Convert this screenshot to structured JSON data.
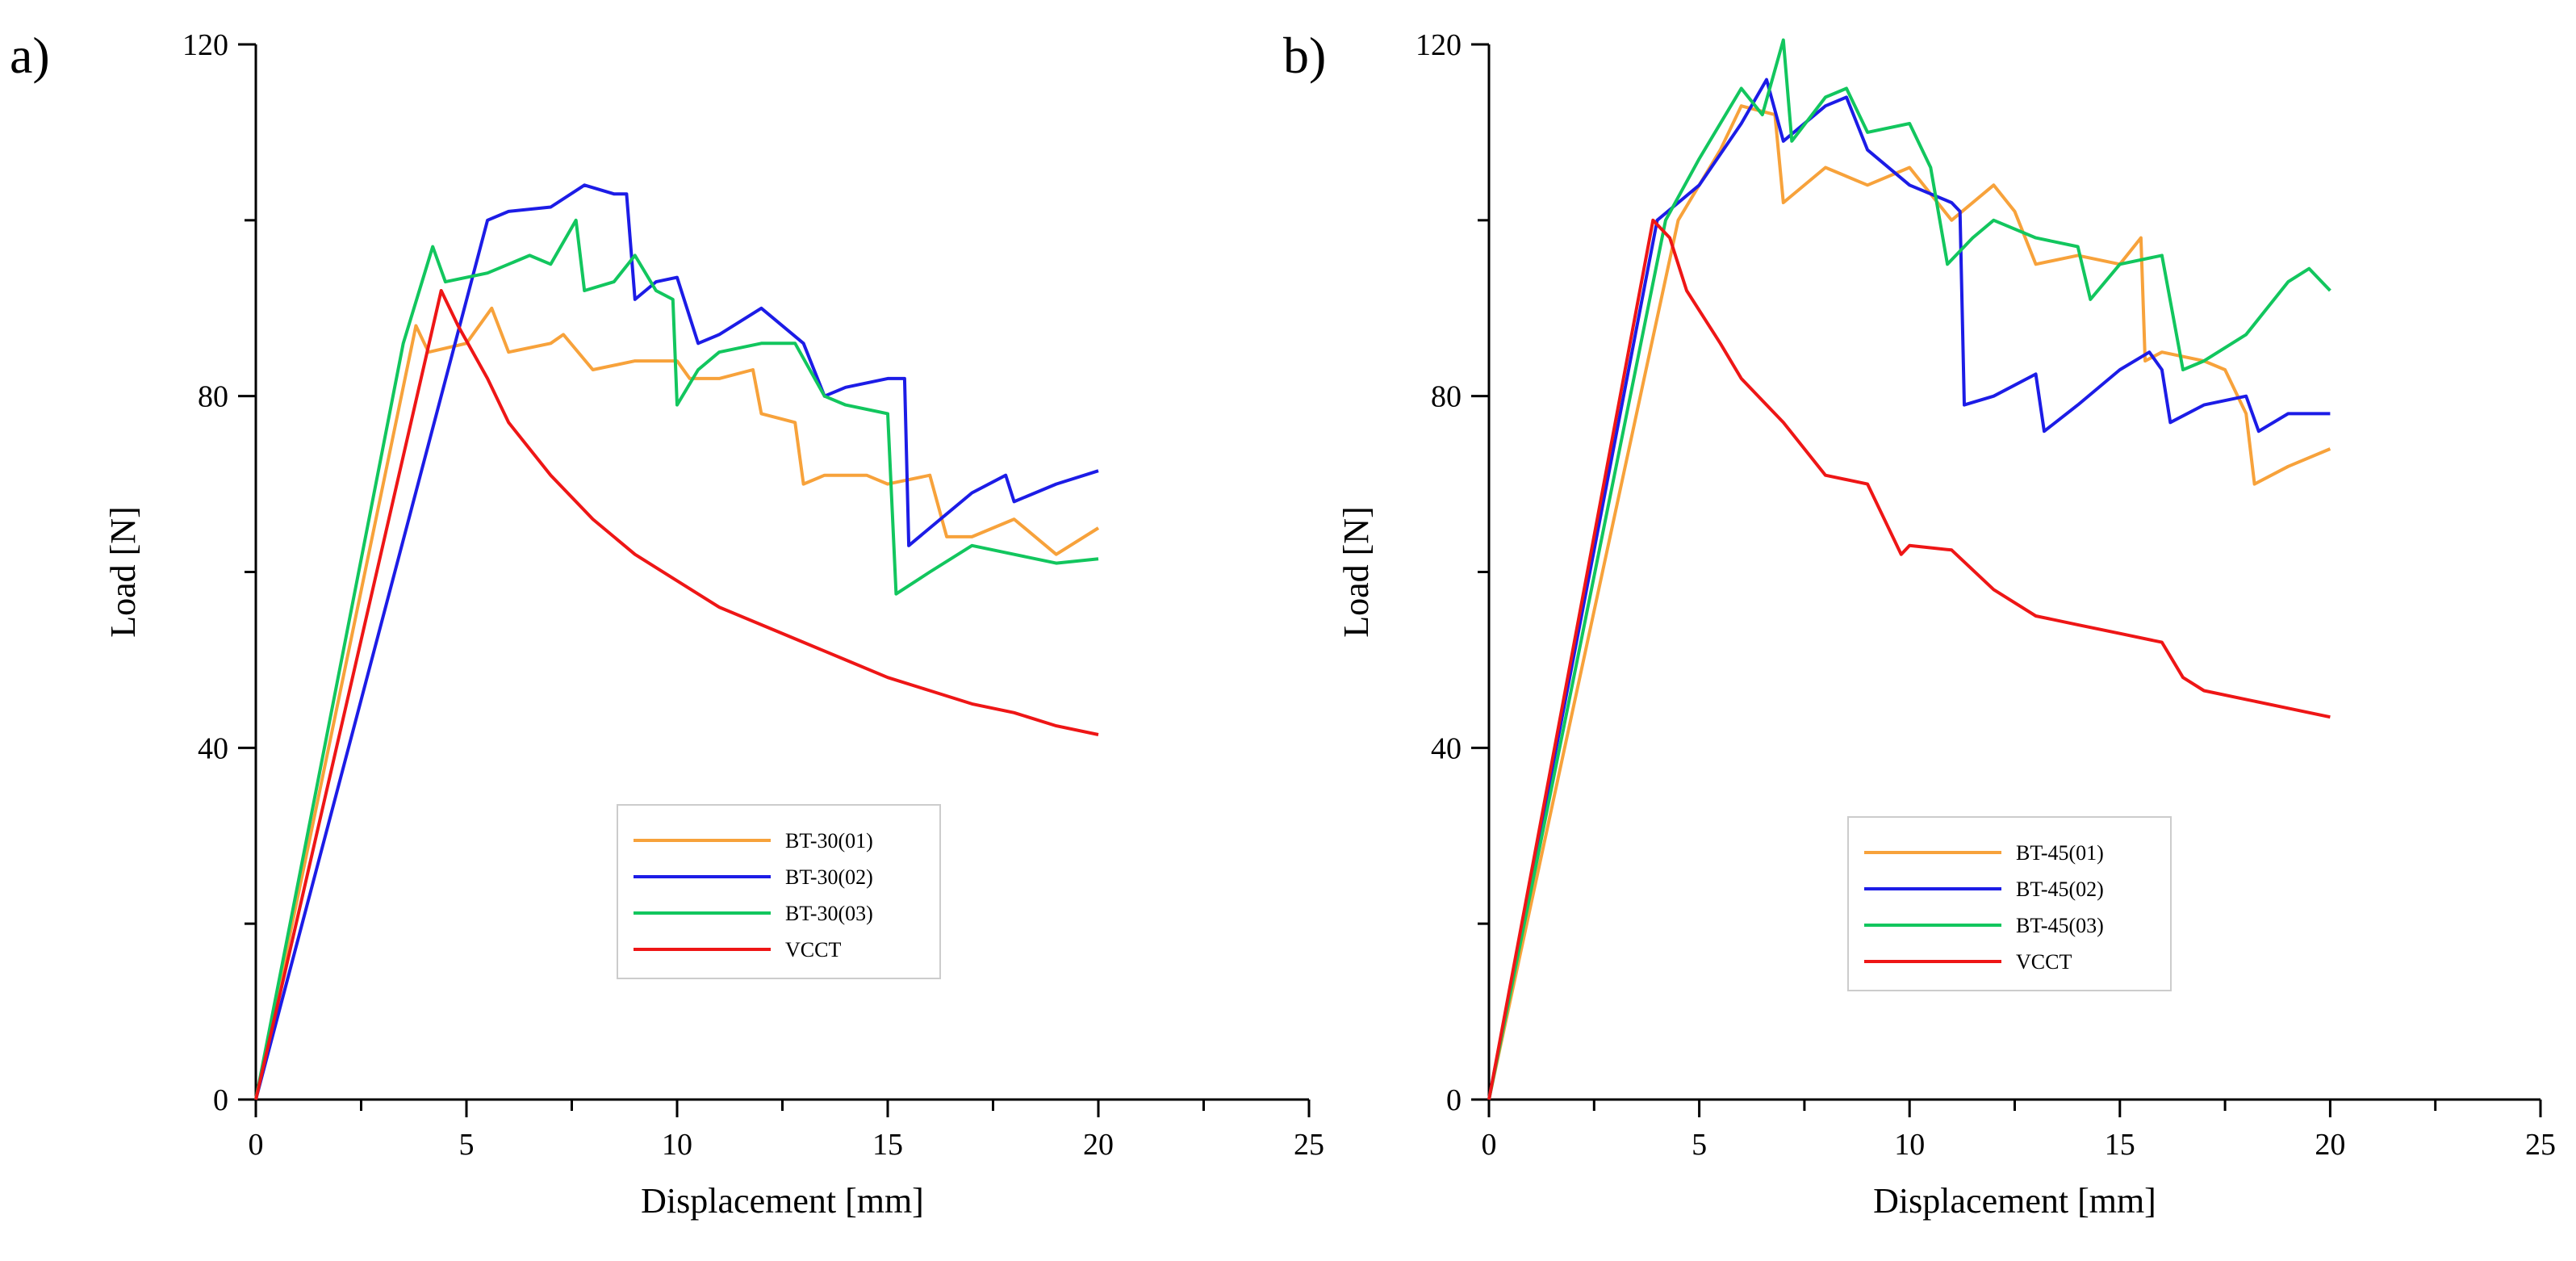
{
  "chart_data": [
    {
      "type": "line",
      "panel": "a)",
      "xlabel": "Displacement [mm]",
      "ylabel": "Load [N]",
      "xlim": [
        0,
        25
      ],
      "ylim": [
        0,
        120
      ],
      "xticks": [
        "0",
        "5",
        "10",
        "15",
        "20",
        "25"
      ],
      "yticks": [
        "0",
        "40",
        "80",
        "120"
      ],
      "legend_position": "center-bottom",
      "series": [
        {
          "name": "BT-30(01)",
          "color": "#F7A23B",
          "points": [
            [
              0,
              0
            ],
            [
              3.8,
              88
            ],
            [
              4.1,
              85
            ],
            [
              5,
              86
            ],
            [
              5.6,
              90
            ],
            [
              6,
              85
            ],
            [
              7,
              86
            ],
            [
              7.3,
              87
            ],
            [
              8,
              83
            ],
            [
              9,
              84
            ],
            [
              10,
              84
            ],
            [
              10.3,
              82
            ],
            [
              11,
              82
            ],
            [
              11.8,
              83
            ],
            [
              12,
              78
            ],
            [
              12.8,
              77
            ],
            [
              13,
              70
            ],
            [
              13.5,
              71
            ],
            [
              14.5,
              71
            ],
            [
              15,
              70
            ],
            [
              16,
              71
            ],
            [
              16.4,
              64
            ],
            [
              17,
              64
            ],
            [
              18,
              66
            ],
            [
              19,
              62
            ],
            [
              20,
              65
            ]
          ]
        },
        {
          "name": "BT-30(02)",
          "color": "#1C1CE6",
          "points": [
            [
              0,
              0
            ],
            [
              5.5,
              100
            ],
            [
              6,
              101
            ],
            [
              7,
              101.5
            ],
            [
              7.8,
              104
            ],
            [
              8.5,
              103
            ],
            [
              8.8,
              103
            ],
            [
              9,
              91
            ],
            [
              9.5,
              93
            ],
            [
              10,
              93.5
            ],
            [
              10.5,
              86
            ],
            [
              11,
              87
            ],
            [
              12,
              90
            ],
            [
              13,
              86
            ],
            [
              13.5,
              80
            ],
            [
              14,
              81
            ],
            [
              15,
              82
            ],
            [
              15.4,
              82
            ],
            [
              15.5,
              63
            ],
            [
              16,
              65
            ],
            [
              17,
              69
            ],
            [
              17.8,
              71
            ],
            [
              18,
              68
            ],
            [
              19,
              70
            ],
            [
              20,
              71.5
            ]
          ]
        },
        {
          "name": "BT-30(03)",
          "color": "#12C65E",
          "points": [
            [
              0,
              0
            ],
            [
              3.5,
              86
            ],
            [
              4.2,
              97
            ],
            [
              4.5,
              93
            ],
            [
              5.5,
              94
            ],
            [
              6.5,
              96
            ],
            [
              7,
              95
            ],
            [
              7.6,
              100
            ],
            [
              7.8,
              92
            ],
            [
              8.5,
              93
            ],
            [
              9,
              96
            ],
            [
              9.5,
              92
            ],
            [
              9.9,
              91
            ],
            [
              10,
              79
            ],
            [
              10.5,
              83
            ],
            [
              11,
              85
            ],
            [
              12,
              86
            ],
            [
              12.8,
              86
            ],
            [
              13.5,
              80
            ],
            [
              14,
              79
            ],
            [
              15,
              78
            ],
            [
              15.2,
              57.5
            ],
            [
              16,
              60
            ],
            [
              17,
              63
            ],
            [
              18,
              62
            ],
            [
              19,
              61
            ],
            [
              20,
              61.5
            ]
          ]
        },
        {
          "name": "VCCT",
          "color": "#EE1616",
          "points": [
            [
              0,
              0
            ],
            [
              4.4,
              92
            ],
            [
              4.8,
              88
            ],
            [
              5.5,
              82
            ],
            [
              6,
              77
            ],
            [
              7,
              71
            ],
            [
              8,
              66
            ],
            [
              9,
              62
            ],
            [
              10,
              59
            ],
            [
              11,
              56
            ],
            [
              12,
              54
            ],
            [
              13,
              52
            ],
            [
              14,
              50
            ],
            [
              15,
              48
            ],
            [
              16,
              46.5
            ],
            [
              17,
              45
            ],
            [
              18,
              44
            ],
            [
              19,
              42.5
            ],
            [
              20,
              41.5
            ]
          ]
        }
      ]
    },
    {
      "type": "line",
      "panel": "b)",
      "xlabel": "Displacement [mm]",
      "ylabel": "Load [N]",
      "xlim": [
        0,
        25
      ],
      "ylim": [
        0,
        120
      ],
      "xticks": [
        "0",
        "5",
        "10",
        "15",
        "20",
        "25"
      ],
      "yticks": [
        "0",
        "40",
        "80",
        "120"
      ],
      "legend_position": "center-bottom",
      "series": [
        {
          "name": "BT-45(01)",
          "color": "#F7A23B",
          "points": [
            [
              0,
              0
            ],
            [
              4.5,
              100
            ],
            [
              5.5,
              108
            ],
            [
              6,
              113
            ],
            [
              6.8,
              112
            ],
            [
              7,
              102
            ],
            [
              8,
              106
            ],
            [
              9,
              104
            ],
            [
              10,
              106
            ],
            [
              11,
              100
            ],
            [
              12,
              104
            ],
            [
              12.5,
              101
            ],
            [
              13,
              95
            ],
            [
              14,
              96
            ],
            [
              15,
              95
            ],
            [
              15.5,
              98
            ],
            [
              15.6,
              84
            ],
            [
              16,
              85
            ],
            [
              17,
              84
            ],
            [
              17.5,
              83
            ],
            [
              18,
              78
            ],
            [
              18.2,
              70
            ],
            [
              19,
              72
            ],
            [
              20,
              74
            ]
          ]
        },
        {
          "name": "BT-45(02)",
          "color": "#1C1CE6",
          "points": [
            [
              0,
              0
            ],
            [
              4,
              100
            ],
            [
              5,
              104
            ],
            [
              6,
              111
            ],
            [
              6.6,
              116
            ],
            [
              7,
              109
            ],
            [
              8,
              113
            ],
            [
              8.5,
              114
            ],
            [
              9,
              108
            ],
            [
              10,
              104
            ],
            [
              11,
              102
            ],
            [
              11.2,
              101
            ],
            [
              11.3,
              79
            ],
            [
              12,
              80
            ],
            [
              13,
              82.5
            ],
            [
              13.2,
              76
            ],
            [
              14,
              79
            ],
            [
              15,
              83
            ],
            [
              15.7,
              85
            ],
            [
              16,
              83
            ],
            [
              16.2,
              77
            ],
            [
              17,
              79
            ],
            [
              18,
              80
            ],
            [
              18.3,
              76
            ],
            [
              19,
              78
            ],
            [
              20,
              78
            ]
          ]
        },
        {
          "name": "BT-45(03)",
          "color": "#12C65E",
          "points": [
            [
              0,
              0
            ],
            [
              4.2,
              100
            ],
            [
              5,
              107
            ],
            [
              6,
              115
            ],
            [
              6.5,
              112
            ],
            [
              7,
              120.5
            ],
            [
              7.2,
              109
            ],
            [
              8,
              114
            ],
            [
              8.5,
              115
            ],
            [
              9,
              110
            ],
            [
              10,
              111
            ],
            [
              10.5,
              106
            ],
            [
              10.9,
              95
            ],
            [
              11.5,
              98
            ],
            [
              12,
              100
            ],
            [
              13,
              98
            ],
            [
              14,
              97
            ],
            [
              14.3,
              91
            ],
            [
              15,
              95
            ],
            [
              16,
              96
            ],
            [
              16.5,
              83
            ],
            [
              17,
              84
            ],
            [
              18,
              87
            ],
            [
              19,
              93
            ],
            [
              19.5,
              94.5
            ],
            [
              20,
              92
            ]
          ]
        },
        {
          "name": "VCCT",
          "color": "#EE1616",
          "points": [
            [
              0,
              0
            ],
            [
              3.9,
              100
            ],
            [
              4.3,
              98
            ],
            [
              4.7,
              92
            ],
            [
              5.5,
              86
            ],
            [
              6,
              82
            ],
            [
              7,
              77
            ],
            [
              8,
              71
            ],
            [
              9,
              70
            ],
            [
              9.8,
              62
            ],
            [
              10,
              63
            ],
            [
              11,
              62.5
            ],
            [
              12,
              58
            ],
            [
              13,
              55
            ],
            [
              14,
              54
            ],
            [
              15,
              53
            ],
            [
              16,
              52
            ],
            [
              16.5,
              48
            ],
            [
              17,
              46.5
            ],
            [
              18,
              45.5
            ],
            [
              19,
              44.5
            ],
            [
              20,
              43.5
            ]
          ]
        }
      ]
    }
  ]
}
